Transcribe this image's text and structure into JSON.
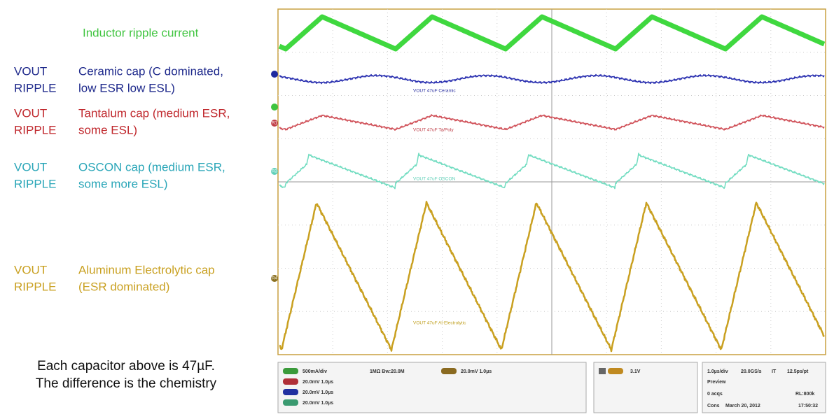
{
  "annotations": {
    "title": "Inductor ripple current",
    "rows": [
      {
        "left": [
          "VOUT",
          "RIPPLE"
        ],
        "right": [
          "Ceramic cap (C dominated,",
          "low ESR low ESL)"
        ]
      },
      {
        "left": [
          "VOUT",
          "RIPPLE"
        ],
        "right": [
          "Tantalum cap (medium ESR,",
          "some ESL)"
        ]
      },
      {
        "left": [
          "VOUT",
          "RIPPLE"
        ],
        "right": [
          "OSCON cap (medium ESR,",
          "some more ESL)"
        ]
      },
      {
        "left": [
          "VOUT",
          "RIPPLE"
        ],
        "right": [
          "Aluminum Electrolytic cap",
          "(ESR dominated)"
        ]
      }
    ],
    "note": [
      "Each capacitor above is 47µF.",
      "The difference is the chemistry"
    ]
  },
  "scope": {
    "trace_labels": [
      "VOUT 47uF Ceramic",
      "VOUT 47uF Ta/Poly",
      "VOUT 47uF OSCON",
      "VOUT 47uF Al-Electrolytic"
    ],
    "markers": [
      "R1",
      "R3",
      "R4"
    ],
    "status": {
      "channels": [
        "500mA/div",
        "20.0mV 1.0µs",
        "20.0mV 1.0µs",
        "20.0mV 1.0µs"
      ],
      "bandwidth": "1MΩ Bw:20.0M",
      "ref4": "20.0mV 1.0µs",
      "trigger": "3.1V",
      "timebase": [
        "1.0µs/div",
        "20.0GS/s",
        "IT",
        "12.5ps/pt"
      ],
      "mode": "Preview",
      "acqs": "0 acqs",
      "record": "RL:800k",
      "cons": "Cons",
      "date": "March 20, 2012",
      "time": "17:50:32"
    }
  }
}
